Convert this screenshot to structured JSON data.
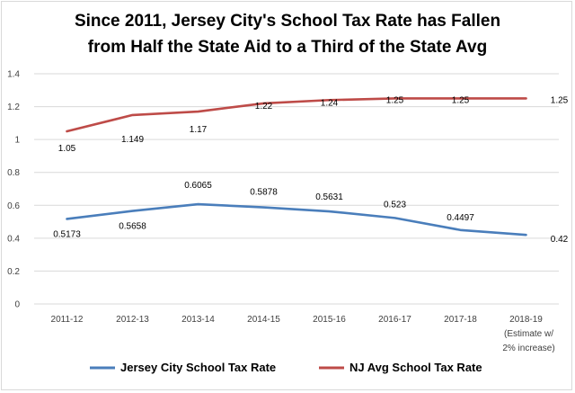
{
  "chart_data": {
    "type": "line",
    "title_lines": [
      "Since 2011, Jersey City's School Tax Rate has Fallen",
      "from Half the State Aid to a Third of the State Avg"
    ],
    "categories": [
      "2011-12",
      "2012-13",
      "2013-14",
      "2014-15",
      "2015-16",
      "2016-17",
      "2017-18",
      "2018-19"
    ],
    "last_category_note": [
      "(Estimate w/",
      "2% increase)"
    ],
    "ylim": [
      0,
      1.4
    ],
    "yticks": [
      "0",
      "0.2",
      "0.4",
      "0.6",
      "0.8",
      "1",
      "1.2",
      "1.4"
    ],
    "grid": true,
    "legend_position": "bottom",
    "series": [
      {
        "name": "Jersey City School Tax Rate",
        "color": "#4a7ebb",
        "values": [
          0.5173,
          0.5658,
          0.6065,
          0.5878,
          0.5631,
          0.523,
          0.4497,
          0.42
        ],
        "labels": [
          "0.5173",
          "0.5658",
          "0.6065",
          "0.5878",
          "0.5631",
          "0.523",
          "0.4497",
          "0.42"
        ]
      },
      {
        "name": "NJ Avg School Tax Rate",
        "color": "#be4b48",
        "values": [
          1.05,
          1.149,
          1.17,
          1.22,
          1.24,
          1.25,
          1.25,
          1.25
        ],
        "labels": [
          "1.05",
          "1.149",
          "1.17",
          "1.22",
          "1.24",
          "1.25",
          "1.25",
          "1.25"
        ]
      }
    ]
  }
}
